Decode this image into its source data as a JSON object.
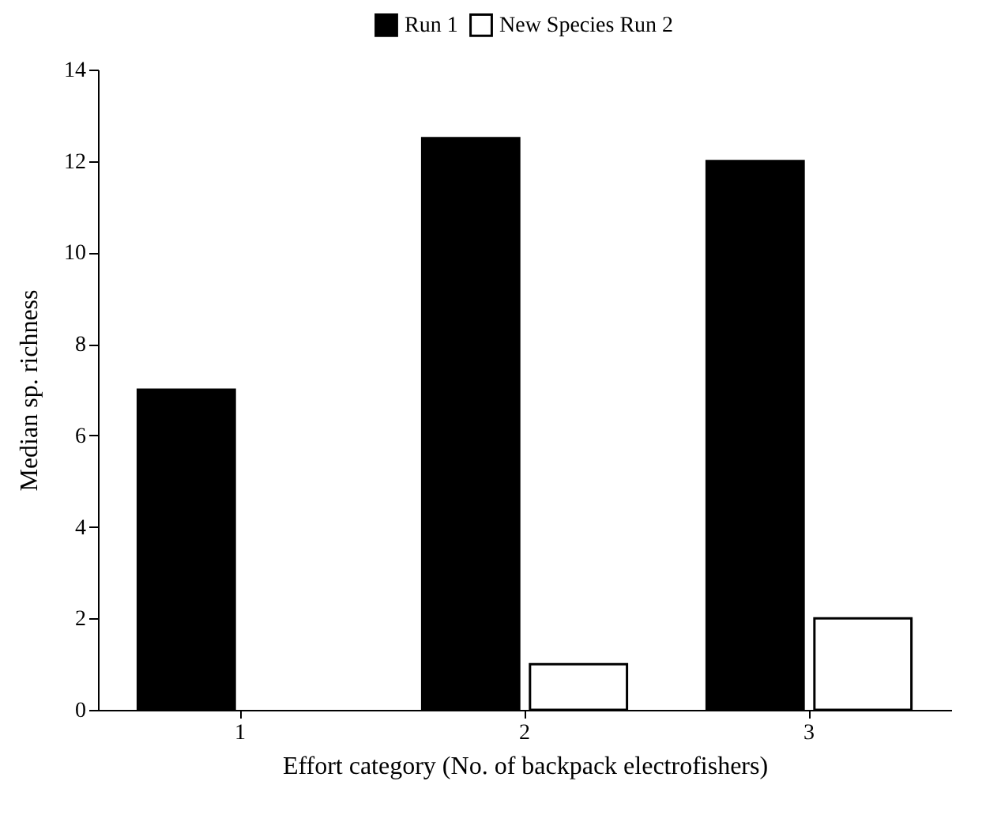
{
  "chart_data": {
    "type": "bar",
    "xlabel": "Effort category (No. of backpack electrofishers)",
    "ylabel": "Median sp. richness",
    "categories": [
      "1",
      "2",
      "3"
    ],
    "series": [
      {
        "name": "Run 1",
        "color": "#000000",
        "values": [
          7,
          12.5,
          12
        ]
      },
      {
        "name": "New Species Run 2",
        "color": "#ffffff",
        "values": [
          null,
          1,
          2
        ]
      }
    ],
    "ylim": [
      0,
      14
    ],
    "yticks": [
      0,
      2,
      4,
      6,
      8,
      10,
      12,
      14
    ],
    "grid": false,
    "legend": "top"
  }
}
